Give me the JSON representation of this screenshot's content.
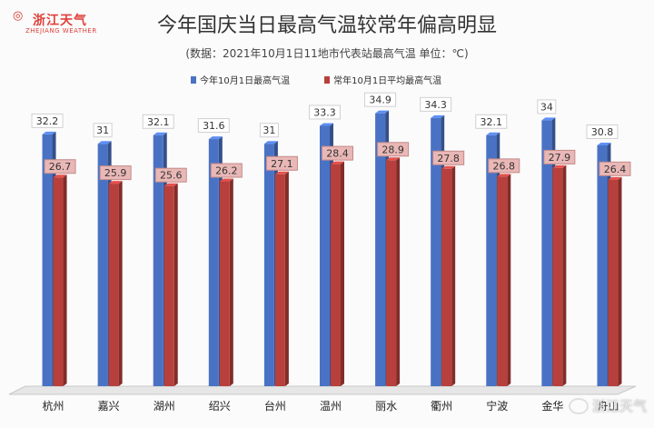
{
  "logo": {
    "name": "浙江天气",
    "subname": "ZHEJIANG WEATHER"
  },
  "colors": {
    "series1": "#4a72c4",
    "series2": "#b8403c",
    "label_bg": "#e9b8b6",
    "label_border": "#c28a88"
  },
  "watermark": {
    "text": "浙江天气"
  },
  "chart_data": {
    "type": "bar",
    "title": "今年国庆当日最高气温较常年偏高明显",
    "subtitle": "(数据：2021年10月1日11地市代表站最高气温 单位：℃)",
    "categories": [
      "杭州",
      "嘉兴",
      "湖州",
      "绍兴",
      "台州",
      "温州",
      "丽水",
      "衢州",
      "宁波",
      "金华",
      "舟山"
    ],
    "series": [
      {
        "name": "今年10月1日最高气温",
        "values": [
          32.2,
          31,
          32.1,
          31.6,
          31,
          33.3,
          34.9,
          34.3,
          32.1,
          34,
          30.8
        ]
      },
      {
        "name": "常年10月1日平均最高气温",
        "values": [
          26.7,
          25.9,
          25.6,
          26.2,
          27.1,
          28.4,
          28.9,
          27.8,
          26.8,
          27.9,
          26.4
        ]
      }
    ],
    "value_labels": {
      "series1": [
        "32.2",
        "31",
        "32.1",
        "31.6",
        "31",
        "33.3",
        "34.9",
        "34.3",
        "32.1",
        "34",
        "30.8"
      ],
      "series2": [
        "26.7",
        "25.9",
        "25.6",
        "26.2",
        "27.1",
        "28.4",
        "28.9",
        "27.8",
        "26.8",
        "27.9",
        "26.4"
      ]
    },
    "ylim": [
      0,
      38
    ],
    "grid": false,
    "legend_position": "top"
  }
}
